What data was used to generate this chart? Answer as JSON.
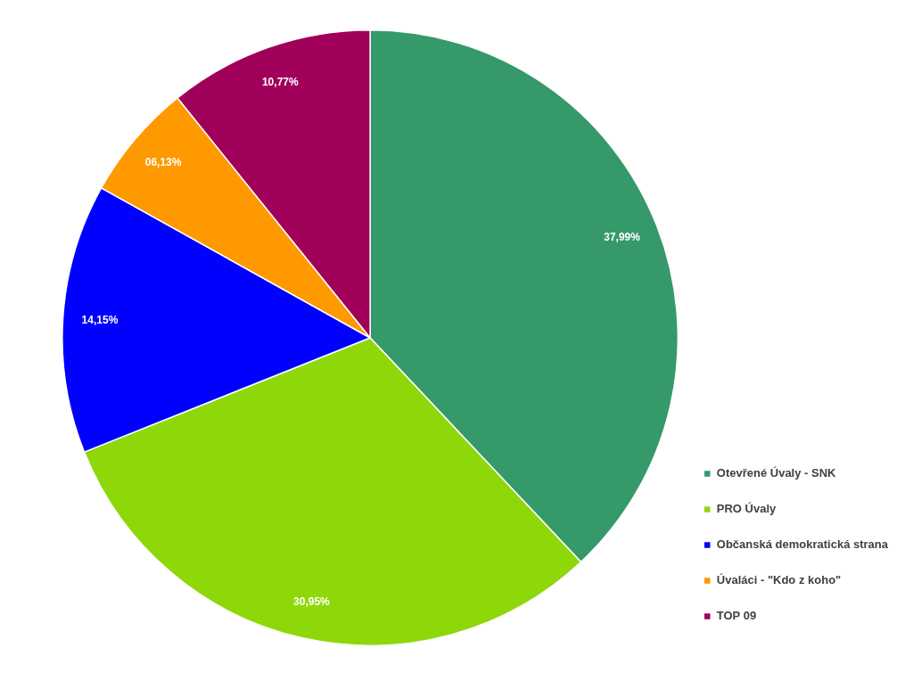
{
  "chart_data": {
    "type": "pie",
    "categories": [
      "Otevřené Úvaly - SNK",
      "PRO Úvaly",
      "Občanská demokratická strana",
      "Úvaláci - \"Kdo z koho\"",
      "TOP 09"
    ],
    "values": [
      37.99,
      30.95,
      14.15,
      6.13,
      10.77
    ],
    "colors": [
      "#35996a",
      "#8ed80a",
      "#0000ff",
      "#ff9900",
      "#a0005a"
    ],
    "value_labels": [
      "37,99%",
      "30,95%",
      "14,15%",
      "06,13%",
      "10,77%"
    ],
    "legend": "bottom right"
  }
}
